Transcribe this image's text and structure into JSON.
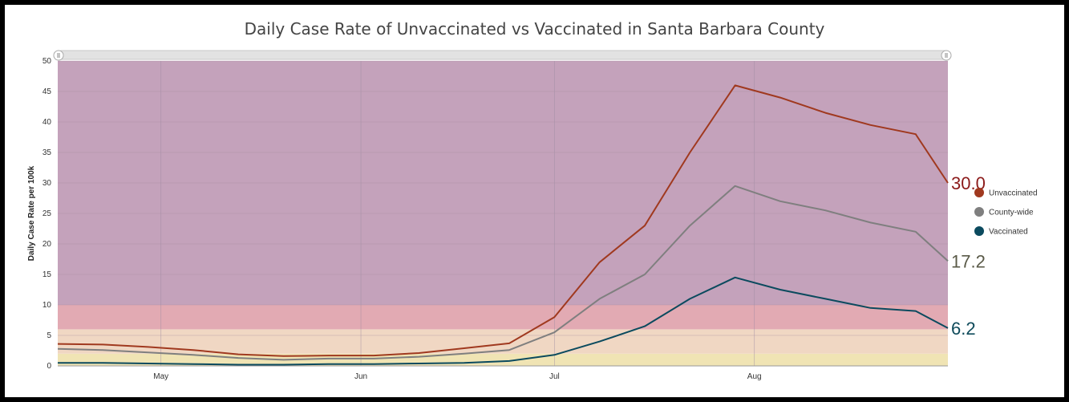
{
  "chart_data": {
    "type": "line",
    "title": "Daily Case Rate of Unvaccinated vs Vaccinated in Santa Barbara County",
    "xlabel": "",
    "ylabel": "Daily Case Rate per 100k",
    "ylim": [
      0,
      50
    ],
    "yticks": [
      0,
      5,
      10,
      15,
      20,
      25,
      30,
      35,
      40,
      45,
      50
    ],
    "xlim": [
      "2021-04-15",
      "2021-08-31"
    ],
    "x_tick_labels": [
      {
        "label": "May",
        "date": "2021-05-01"
      },
      {
        "label": "Jun",
        "date": "2021-06-01"
      },
      {
        "label": "Jul",
        "date": "2021-07-01"
      },
      {
        "label": "Aug",
        "date": "2021-08-01"
      }
    ],
    "tier_bands": [
      {
        "from": 0,
        "to": 2,
        "color": "#f0e4b4"
      },
      {
        "from": 2,
        "to": 6,
        "color": "#f0d7c3"
      },
      {
        "from": 6,
        "to": 10,
        "color": "#e2aab3"
      },
      {
        "from": 10,
        "to": 50,
        "color": "#c4a2bb"
      }
    ],
    "x": [
      "2021-04-15",
      "2021-04-22",
      "2021-04-29",
      "2021-05-06",
      "2021-05-13",
      "2021-05-20",
      "2021-05-27",
      "2021-06-03",
      "2021-06-10",
      "2021-06-17",
      "2021-06-24",
      "2021-07-01",
      "2021-07-08",
      "2021-07-15",
      "2021-07-22",
      "2021-07-29",
      "2021-08-05",
      "2021-08-12",
      "2021-08-19",
      "2021-08-26",
      "2021-08-31"
    ],
    "series": [
      {
        "name": "Unvaccinated",
        "color": "#a0391f",
        "values": [
          3.6,
          3.5,
          3.1,
          2.6,
          1.9,
          1.6,
          1.7,
          1.7,
          2.1,
          2.9,
          3.7,
          8.0,
          17.0,
          23.0,
          35.0,
          46.0,
          44.0,
          41.5,
          39.5,
          38.0,
          30.0
        ]
      },
      {
        "name": "County-wide",
        "color": "#7f7f7f",
        "values": [
          2.8,
          2.6,
          2.2,
          1.8,
          1.3,
          1.0,
          1.2,
          1.2,
          1.5,
          2.0,
          2.6,
          5.5,
          11.0,
          15.0,
          23.0,
          29.5,
          27.0,
          25.5,
          23.5,
          22.0,
          17.2
        ]
      },
      {
        "name": "Vaccinated",
        "color": "#0b4a5e",
        "values": [
          0.5,
          0.5,
          0.4,
          0.3,
          0.2,
          0.2,
          0.3,
          0.3,
          0.4,
          0.5,
          0.8,
          1.8,
          4.0,
          6.5,
          11.0,
          14.5,
          12.5,
          11.0,
          9.5,
          9.0,
          6.2
        ]
      }
    ],
    "end_labels": [
      {
        "text": "30.0",
        "color": "#8b1a1a"
      },
      {
        "text": "17.2",
        "color": "#5a5a48"
      },
      {
        "text": "6.2",
        "color": "#0e4a5a"
      }
    ],
    "legend_position": "right"
  }
}
